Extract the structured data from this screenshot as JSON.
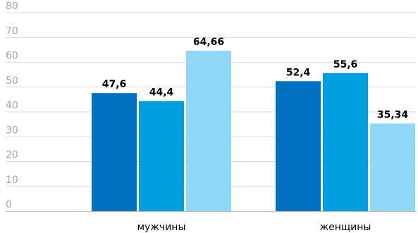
{
  "chart_data": {
    "type": "bar",
    "categories": [
      "мужчины",
      "женщины"
    ],
    "series": [
      {
        "values": [
          47.6,
          52.4
        ],
        "labels": [
          "47,6",
          "52,4"
        ],
        "color": "#0070c0"
      },
      {
        "values": [
          44.4,
          55.6
        ],
        "labels": [
          "44,4",
          "55,6"
        ],
        "color": "#00a0e0"
      },
      {
        "values": [
          64.66,
          35.34
        ],
        "labels": [
          "64,66",
          "35,34"
        ],
        "color": "#8fd8f8"
      }
    ],
    "ylim": [
      0,
      80
    ],
    "yticks": [
      0,
      10,
      20,
      30,
      40,
      50,
      60,
      70,
      80
    ],
    "ytick_labels": [
      "0",
      "10",
      "20",
      "30",
      "40",
      "50",
      "60",
      "70",
      "80"
    ],
    "grid": true,
    "legend": false
  }
}
